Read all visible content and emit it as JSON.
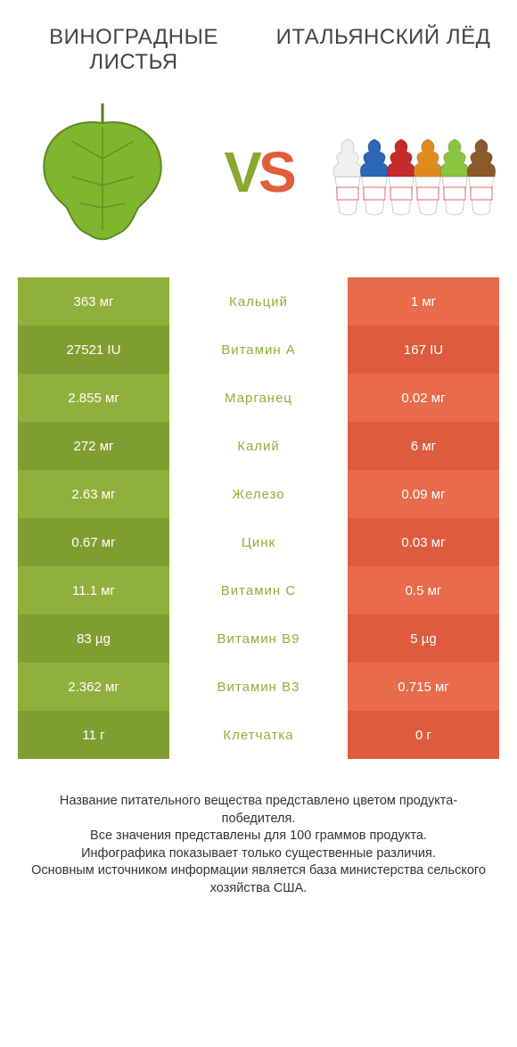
{
  "palette": {
    "green_a": "#8fb03a",
    "green_b": "#7f9e31",
    "orange_a": "#e86b4a",
    "orange_b": "#de5c3d",
    "mid_text": "#555555",
    "heading_text": "#444444",
    "bg": "#ffffff",
    "vs_v": "#8aa72f",
    "vs_s": "#e25c3a"
  },
  "left_title": "ВИНОГРАДНЫЕ ЛИСТЬЯ",
  "right_title": "ИТАЛЬЯНСКИЙ ЛЁД",
  "vs_v": "V",
  "vs_s": "S",
  "cone_colors": [
    "#f0f0f0",
    "#2b66b7",
    "#c42a2a",
    "#e08a1e",
    "#8bc43f",
    "#8a5a2b"
  ],
  "rows": [
    {
      "left": "363 мг",
      "mid": "Кальций",
      "right": "1 мг"
    },
    {
      "left": "27521 IU",
      "mid": "Витамин A",
      "right": "167 IU"
    },
    {
      "left": "2.855 мг",
      "mid": "Марганец",
      "right": "0.02 мг"
    },
    {
      "left": "272 мг",
      "mid": "Калий",
      "right": "6 мг"
    },
    {
      "left": "2.63 мг",
      "mid": "Железо",
      "right": "0.09 мг"
    },
    {
      "left": "0.67 мг",
      "mid": "Цинк",
      "right": "0.03 мг"
    },
    {
      "left": "11.1 мг",
      "mid": "Витамин C",
      "right": "0.5 мг"
    },
    {
      "left": "83 µg",
      "mid": "Витамин B9",
      "right": "5 µg"
    },
    {
      "left": "2.362 мг",
      "mid": "Витамин B3",
      "right": "0.715 мг"
    },
    {
      "left": "11 г",
      "mid": "Клетчатка",
      "right": "0 г"
    }
  ],
  "footnote_lines": [
    "Название питательного вещества представлено цветом продукта-победителя.",
    "Все значения представлены для 100 граммов продукта.",
    "Инфографика показывает только существенные различия.",
    "Основным источником информации является база министерства сельского хозяйства США."
  ]
}
